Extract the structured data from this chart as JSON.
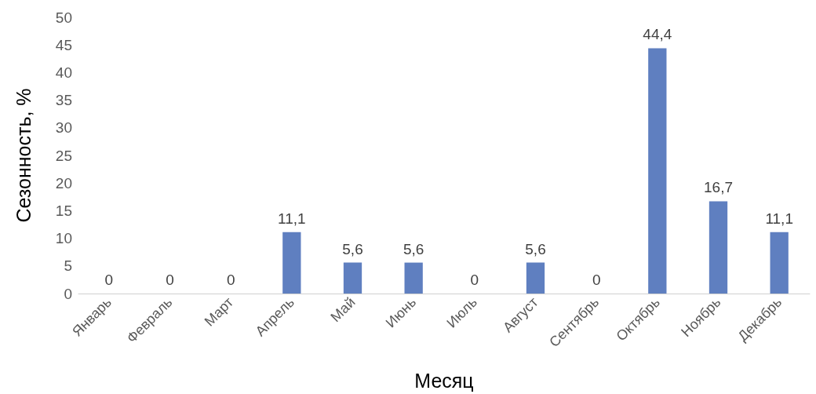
{
  "chart_data": {
    "type": "bar",
    "xlabel": "Месяц",
    "ylabel": "Сезонность, %",
    "categories": [
      "Январь",
      "Февраль",
      "Март",
      "Апрель",
      "Май",
      "Июнь",
      "Июль",
      "Август",
      "Сентябрь",
      "Октябрь",
      "Ноябрь",
      "Декабрь"
    ],
    "values": [
      0,
      0,
      0,
      11.1,
      5.6,
      5.6,
      0,
      5.6,
      0,
      44.4,
      16.7,
      11.1
    ],
    "value_labels": [
      "0",
      "0",
      "0",
      "11,1",
      "5,6",
      "5,6",
      "0",
      "5,6",
      "0",
      "44,4",
      "16,7",
      "11,1"
    ],
    "color": "#5f7fc0",
    "ylim": [
      0,
      50
    ],
    "yticks": [
      0,
      5,
      10,
      15,
      20,
      25,
      30,
      35,
      40,
      45,
      50
    ],
    "grid": false
  }
}
